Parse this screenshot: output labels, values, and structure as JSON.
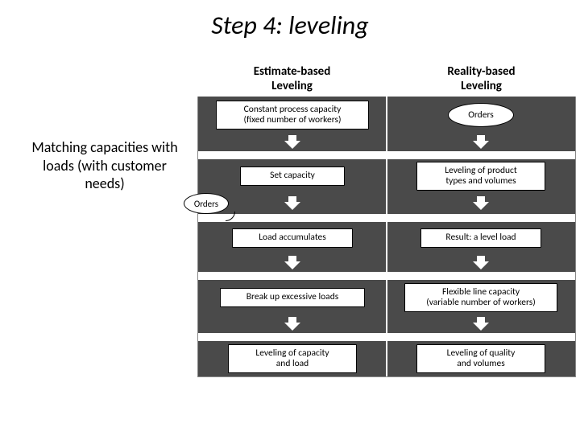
{
  "title": "Step 4: leveling",
  "sidebar": "Matching capacities with loads (with customer needs)",
  "headers": {
    "left": "Estimate-based\nLeveling",
    "right": "Reality-based\nLeveling"
  },
  "left": {
    "box1": "Constant process capacity\n(fixed number of workers)",
    "box2": "Set capacity",
    "callout": "Orders",
    "box3": "Load accumulates",
    "box4": "Break up excessive loads",
    "box5": "Leveling of capacity\nand load"
  },
  "right": {
    "oval1": "Orders",
    "box2": "Leveling of product\ntypes and volumes",
    "box3": "Result: a level load",
    "box4": "Flexible line capacity\n(variable number of workers)",
    "box5": "Leveling of quality\nand volumes"
  },
  "colors": {
    "band": "#4a4a4a",
    "bg": "#ffffff",
    "text": "#000000",
    "border": "#888888"
  }
}
